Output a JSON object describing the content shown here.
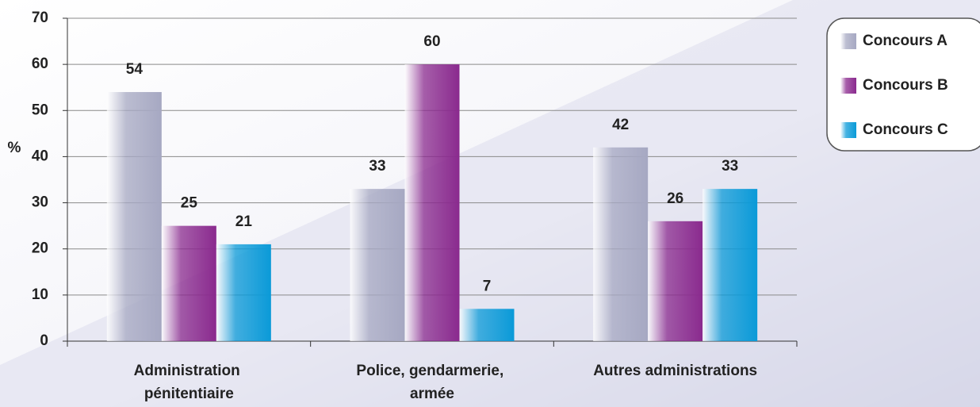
{
  "chart_data": {
    "type": "bar",
    "y_label": "%",
    "categories": [
      "Administration pénitentiaire",
      "Police, gendarmerie, armée",
      "Autres administrations"
    ],
    "series": [
      {
        "name": "Concours A",
        "color": "#a6a8c2",
        "values": [
          54,
          33,
          42
        ]
      },
      {
        "name": "Concours B",
        "color": "#8a2a8e",
        "values": [
          25,
          60,
          26
        ]
      },
      {
        "name": "Concours C",
        "color": "#0a9ad8",
        "values": [
          21,
          7,
          33
        ]
      }
    ],
    "ylim": [
      0,
      70
    ],
    "yticks": [
      0,
      10,
      20,
      30,
      40,
      50,
      60,
      70
    ],
    "grid": true,
    "legend": "top-right"
  }
}
